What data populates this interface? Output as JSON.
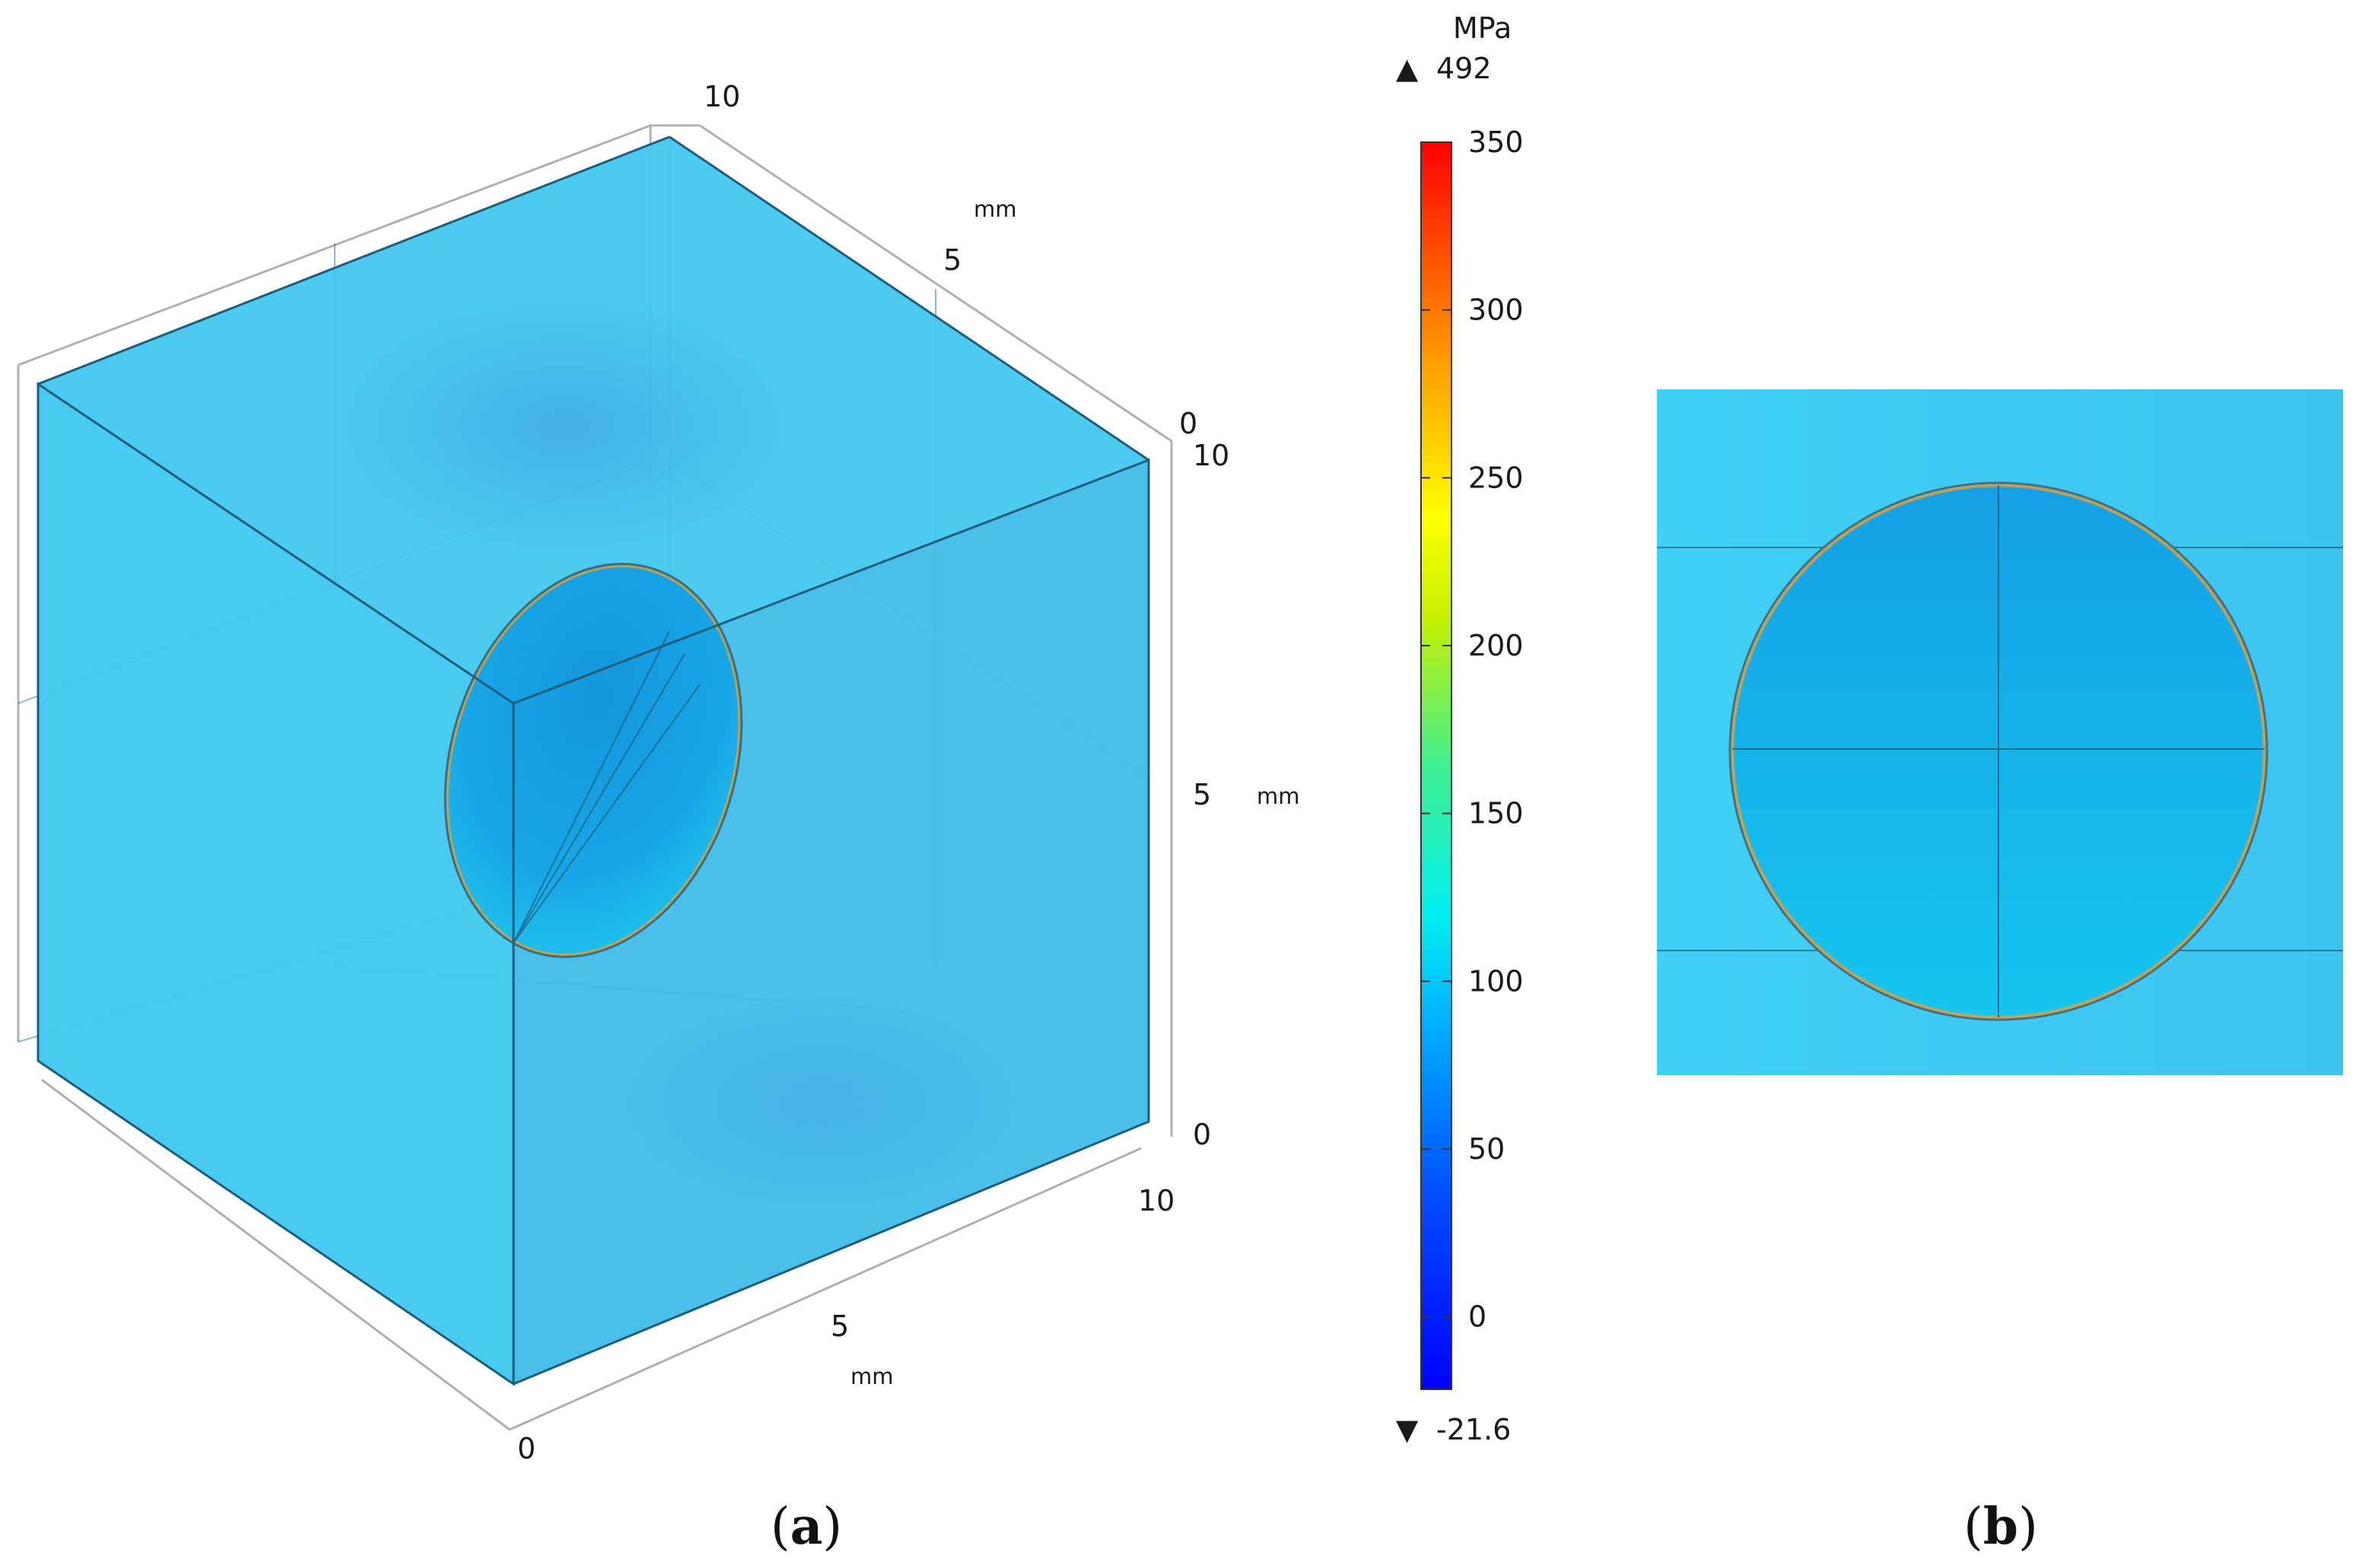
{
  "panel_a": {
    "caption_open": "(",
    "caption_letter": "a",
    "caption_close": ")",
    "axis_ticks": {
      "depth_0": "0",
      "depth_5": "5",
      "depth_10": "10",
      "depth_unit": "mm",
      "height_0": "0",
      "height_5": "5",
      "height_10": "10",
      "height_unit": "mm",
      "width_0": "0",
      "width_5": "5",
      "width_10": "10",
      "width_unit": "mm"
    }
  },
  "panel_b": {
    "caption_open": "(",
    "caption_letter": "b",
    "caption_close": ")"
  },
  "colorbar": {
    "unit": "MPa",
    "max_marker": "▲",
    "max_value": "492",
    "min_marker": "▼",
    "min_value": "-21.6",
    "ticks": [
      "350",
      "300",
      "250",
      "200",
      "150",
      "100",
      "50",
      "0"
    ],
    "tick_values": [
      350,
      300,
      250,
      200,
      150,
      100,
      50,
      0
    ],
    "range": [
      -21.6,
      350
    ],
    "colormap": "rainbow"
  },
  "colors": {
    "matrix": "#3fc6ee",
    "inclusion": "#1ba8e8",
    "edge": "#1f5d7a",
    "axis_box": "#b0b0b0"
  }
}
